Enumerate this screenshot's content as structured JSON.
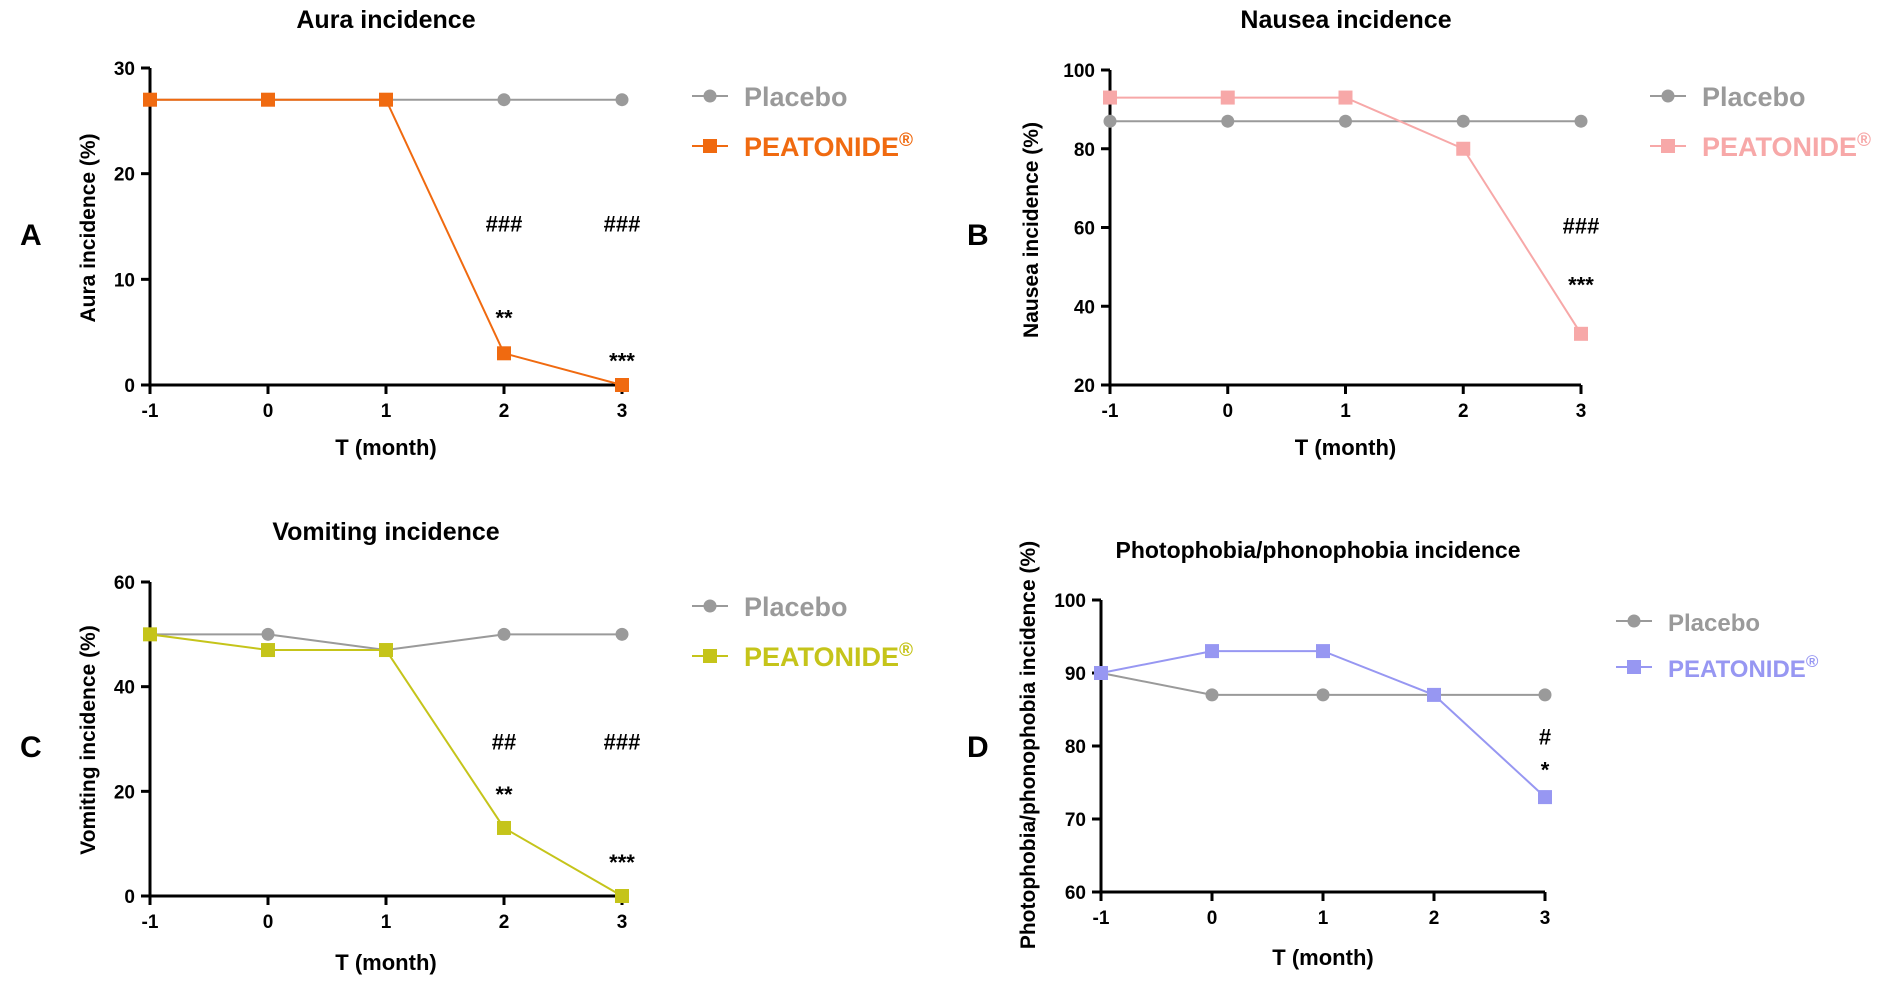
{
  "chart_data": [
    {
      "type": "line",
      "panel_letter": "A",
      "title": "Aura incidence",
      "xlabel": "T (month)",
      "ylabel": "Aura incidence (%)",
      "x": [
        -1,
        0,
        1,
        2,
        3
      ],
      "xtick_labels": [
        "-1",
        "0",
        "1",
        "2",
        "3"
      ],
      "ylim": [
        0,
        30
      ],
      "yticks": [
        0,
        10,
        20,
        30
      ],
      "series": [
        {
          "name": "Placebo",
          "marker": "circle",
          "color": "#9a9a9a",
          "values": [
            27,
            27,
            27,
            27,
            27
          ]
        },
        {
          "name": "PEATONIDE",
          "marker": "square",
          "color": "#f06a10",
          "values": [
            27,
            27,
            27,
            3,
            0
          ]
        }
      ],
      "annotations": [
        {
          "x": 2,
          "y": 15.3,
          "text": "###"
        },
        {
          "x": 3,
          "y": 15.3,
          "text": "###"
        },
        {
          "x": 2,
          "y": 6.4,
          "text": "**"
        },
        {
          "x": 3,
          "y": 2.3,
          "text": "***"
        }
      ]
    },
    {
      "type": "line",
      "panel_letter": "B",
      "title": "Nausea incidence",
      "xlabel": "T (month)",
      "ylabel": "Nausea incidence (%)",
      "x": [
        -1,
        0,
        1,
        2,
        3
      ],
      "xtick_labels": [
        "-1",
        "0",
        "1",
        "2",
        "3"
      ],
      "ylim": [
        20,
        100
      ],
      "yticks": [
        20,
        40,
        60,
        80,
        100
      ],
      "series": [
        {
          "name": "Placebo",
          "marker": "circle",
          "color": "#9a9a9a",
          "values": [
            87,
            87,
            87,
            87,
            87
          ]
        },
        {
          "name": "PEATONIDE",
          "marker": "square",
          "color": "#f7a8a8",
          "values": [
            93,
            93,
            93,
            80,
            33
          ]
        }
      ],
      "annotations": [
        {
          "x": 3,
          "y": 60.5,
          "text": "###"
        },
        {
          "x": 3,
          "y": 45.5,
          "text": "***"
        }
      ]
    },
    {
      "type": "line",
      "panel_letter": "C",
      "title": "Vomiting incidence",
      "xlabel": "T (month)",
      "ylabel": "Vomiting incidence (%)",
      "x": [
        -1,
        0,
        1,
        2,
        3
      ],
      "xtick_labels": [
        "-1",
        "0",
        "1",
        "2",
        "3"
      ],
      "ylim": [
        0,
        60
      ],
      "yticks": [
        0,
        20,
        40,
        60
      ],
      "series": [
        {
          "name": "Placebo",
          "marker": "circle",
          "color": "#9a9a9a",
          "values": [
            50,
            50,
            47,
            50,
            50
          ]
        },
        {
          "name": "PEATONIDE",
          "marker": "square",
          "color": "#c5c41a",
          "values": [
            50,
            47,
            47,
            13,
            0
          ]
        }
      ],
      "annotations": [
        {
          "x": 2,
          "y": 29.5,
          "text": "##"
        },
        {
          "x": 3,
          "y": 29.5,
          "text": "###"
        },
        {
          "x": 2,
          "y": 19.5,
          "text": "**"
        },
        {
          "x": 3,
          "y": 6.5,
          "text": "***"
        }
      ]
    },
    {
      "type": "line",
      "panel_letter": "D",
      "title": "Photophobia/phonophobia incidence",
      "xlabel": "T (month)",
      "ylabel": "Photophobia/phonophobia incidence (%)",
      "x": [
        -1,
        0,
        1,
        2,
        3
      ],
      "xtick_labels": [
        "-1",
        "0",
        "1",
        "2",
        "3"
      ],
      "ylim": [
        60,
        100
      ],
      "yticks": [
        60,
        70,
        80,
        90,
        100
      ],
      "series": [
        {
          "name": "Placebo",
          "marker": "circle",
          "color": "#9a9a9a",
          "values": [
            90,
            87,
            87,
            87,
            87
          ]
        },
        {
          "name": "PEATONIDE",
          "marker": "square",
          "color": "#9797f2",
          "values": [
            90,
            93,
            93,
            87,
            73
          ]
        }
      ],
      "annotations": [
        {
          "x": 3,
          "y": 81.3,
          "text": "#"
        },
        {
          "x": 3,
          "y": 76.8,
          "text": "*"
        }
      ]
    }
  ],
  "legend": {
    "registered_mark": "®"
  }
}
